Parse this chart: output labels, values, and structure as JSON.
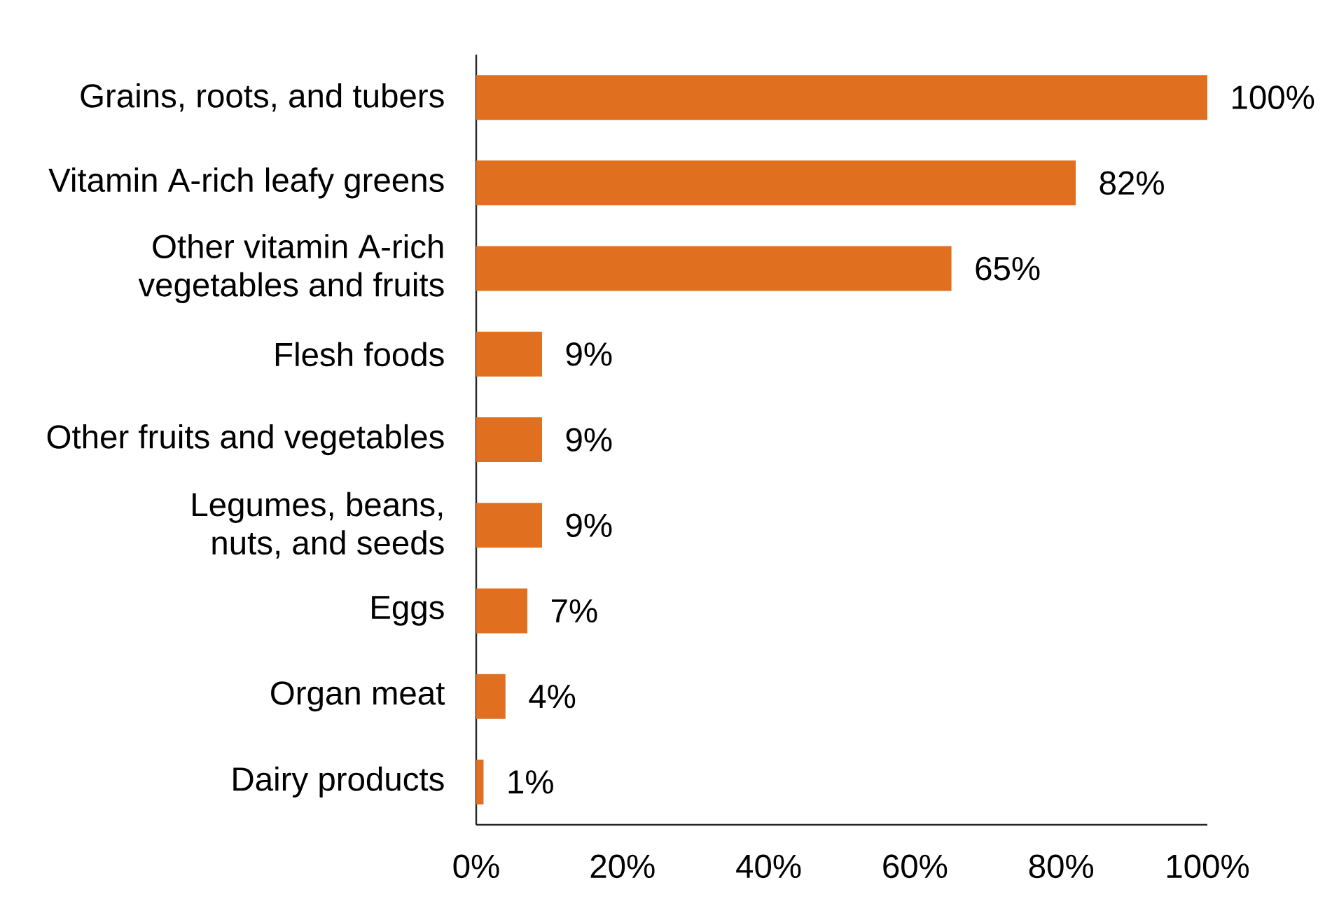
{
  "chart_data": {
    "type": "bar",
    "orientation": "horizontal",
    "categories": [
      "Grains, roots, and tubers",
      "Vitamin A-rich leafy greens",
      "Other vitamin A-rich vegetables and fruits",
      "Flesh foods",
      "Other fruits and vegetables",
      "Legumes, beans, nuts, and seeds",
      "Eggs",
      "Organ meat",
      "Dairy products"
    ],
    "values": [
      100,
      82,
      65,
      9,
      9,
      9,
      7,
      4,
      1
    ],
    "color": "#e06f20",
    "value_labels": [
      "100%",
      "82%",
      "65%",
      "9%",
      "9%",
      "9%",
      "7%",
      "4%",
      "1%"
    ],
    "xlim": [
      0,
      100
    ],
    "xticks": [
      {
        "value": 0,
        "label": "0%"
      },
      {
        "value": 20,
        "label": "20%"
      },
      {
        "value": 40,
        "label": "40%"
      },
      {
        "value": 60,
        "label": "60%"
      },
      {
        "value": 80,
        "label": "80%"
      },
      {
        "value": 100,
        "label": "100%"
      }
    ]
  }
}
